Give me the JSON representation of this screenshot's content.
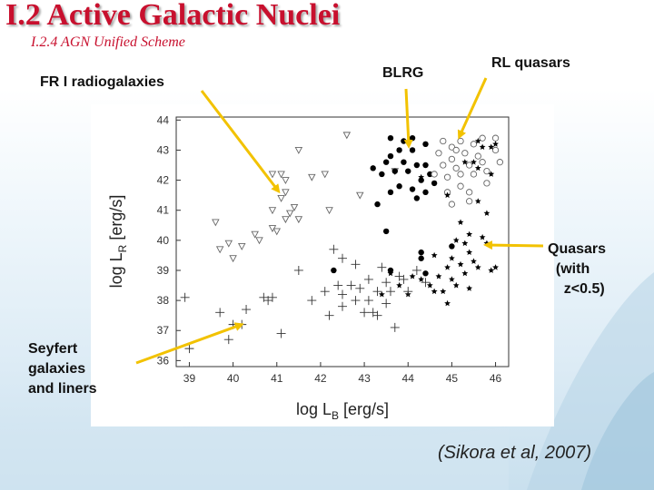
{
  "slide": {
    "title": "I.2 Active Galactic Nuclei",
    "subtitle": "I.2.4 AGN Unified Scheme",
    "citation": "(Sikora et al, 2007)"
  },
  "annotations": {
    "fr1": "FR I radiogalaxies",
    "blrg": "BLRG",
    "rlq": "RL quasars",
    "quasars": "Quasars\n  (with\n    z<0.5)",
    "seyfert": "Seyfert\ngalaxies\nand liners"
  },
  "colors": {
    "title": "#c8102e",
    "arrow": "#f2c200"
  },
  "chart_data": {
    "type": "scatter",
    "xlabel": "log L_B [erg/s]",
    "ylabel": "log L_R [erg/s]",
    "xlim": [
      38.7,
      46.3
    ],
    "ylim": [
      35.8,
      44.1
    ],
    "xticks": [
      39,
      40,
      41,
      42,
      43,
      44,
      45,
      46
    ],
    "yticks": [
      36,
      37,
      38,
      39,
      40,
      41,
      42,
      43,
      44
    ],
    "grid": false,
    "legend": "none",
    "series": [
      {
        "marker": "open-triangle-down",
        "points": [
          [
            39.6,
            40.6
          ],
          [
            39.7,
            39.7
          ],
          [
            39.9,
            39.9
          ],
          [
            40.0,
            39.4
          ],
          [
            40.2,
            39.8
          ],
          [
            40.5,
            40.2
          ],
          [
            40.6,
            40.0
          ],
          [
            40.9,
            40.4
          ],
          [
            41.0,
            40.3
          ],
          [
            41.1,
            41.4
          ],
          [
            41.2,
            40.7
          ],
          [
            41.2,
            41.6
          ],
          [
            41.3,
            40.9
          ],
          [
            41.4,
            41.1
          ],
          [
            41.5,
            40.7
          ],
          [
            41.2,
            42.0
          ],
          [
            41.1,
            42.2
          ],
          [
            40.9,
            42.2
          ],
          [
            40.9,
            41.0
          ],
          [
            41.5,
            43.0
          ],
          [
            41.8,
            42.1
          ],
          [
            42.2,
            41.0
          ],
          [
            42.6,
            43.5
          ],
          [
            42.9,
            41.5
          ],
          [
            43.7,
            42.3
          ],
          [
            42.1,
            42.2
          ]
        ]
      },
      {
        "marker": "filled-circle",
        "points": [
          [
            43.6,
            43.4
          ],
          [
            43.9,
            43.3
          ],
          [
            44.1,
            43.4
          ],
          [
            43.8,
            43.0
          ],
          [
            44.1,
            43.0
          ],
          [
            44.4,
            43.2
          ],
          [
            43.6,
            42.8
          ],
          [
            43.9,
            42.6
          ],
          [
            44.2,
            42.5
          ],
          [
            44.4,
            42.5
          ],
          [
            43.2,
            42.4
          ],
          [
            43.4,
            42.2
          ],
          [
            43.5,
            42.6
          ],
          [
            43.7,
            42.3
          ],
          [
            44.0,
            42.3
          ],
          [
            44.3,
            42.0
          ],
          [
            44.5,
            42.2
          ],
          [
            44.6,
            41.9
          ],
          [
            43.8,
            41.8
          ],
          [
            44.1,
            41.7
          ],
          [
            44.4,
            41.6
          ],
          [
            43.6,
            41.6
          ],
          [
            43.3,
            41.2
          ],
          [
            44.2,
            41.4
          ],
          [
            43.5,
            40.3
          ],
          [
            42.3,
            39.0
          ],
          [
            43.6,
            39.0
          ],
          [
            44.3,
            39.4
          ],
          [
            44.4,
            38.9
          ],
          [
            44.3,
            39.6
          ],
          [
            45.0,
            39.8
          ]
        ]
      },
      {
        "marker": "open-circle",
        "points": [
          [
            44.8,
            43.3
          ],
          [
            45.0,
            43.1
          ],
          [
            45.2,
            43.3
          ],
          [
            45.5,
            43.2
          ],
          [
            45.7,
            43.4
          ],
          [
            46.0,
            43.4
          ],
          [
            46.0,
            43.0
          ],
          [
            44.7,
            42.9
          ],
          [
            45.0,
            42.7
          ],
          [
            45.3,
            42.9
          ],
          [
            45.6,
            42.8
          ],
          [
            44.8,
            42.5
          ],
          [
            45.1,
            42.4
          ],
          [
            45.4,
            42.5
          ],
          [
            45.7,
            42.6
          ],
          [
            44.6,
            42.2
          ],
          [
            44.9,
            42.1
          ],
          [
            45.2,
            42.2
          ],
          [
            45.5,
            42.2
          ],
          [
            45.8,
            42.3
          ],
          [
            46.1,
            42.6
          ],
          [
            45.1,
            43.0
          ],
          [
            44.9,
            41.6
          ],
          [
            45.2,
            41.8
          ],
          [
            45.4,
            41.6
          ],
          [
            45.8,
            41.9
          ],
          [
            45.0,
            41.2
          ],
          [
            45.4,
            41.3
          ]
        ]
      },
      {
        "marker": "filled-star",
        "points": [
          [
            45.6,
            43.3
          ],
          [
            45.9,
            43.1
          ],
          [
            45.7,
            43.1
          ],
          [
            46.0,
            43.2
          ],
          [
            45.3,
            42.6
          ],
          [
            45.6,
            42.4
          ],
          [
            45.9,
            42.2
          ],
          [
            44.3,
            42.1
          ],
          [
            45.5,
            42.6
          ],
          [
            45.6,
            41.3
          ],
          [
            45.8,
            40.9
          ],
          [
            44.9,
            41.5
          ],
          [
            45.2,
            40.6
          ],
          [
            45.4,
            40.2
          ],
          [
            45.7,
            40.1
          ],
          [
            45.8,
            39.9
          ],
          [
            45.1,
            40.0
          ],
          [
            45.3,
            39.9
          ],
          [
            45.0,
            39.4
          ],
          [
            45.2,
            39.2
          ],
          [
            45.4,
            39.6
          ],
          [
            45.5,
            39.3
          ],
          [
            44.9,
            39.1
          ],
          [
            44.7,
            38.8
          ],
          [
            44.5,
            38.5
          ],
          [
            44.8,
            38.3
          ],
          [
            45.1,
            38.5
          ],
          [
            45.3,
            38.9
          ],
          [
            45.4,
            38.4
          ],
          [
            45.0,
            38.7
          ],
          [
            44.3,
            38.7
          ],
          [
            44.0,
            38.2
          ],
          [
            43.8,
            38.5
          ],
          [
            43.4,
            38.2
          ],
          [
            43.6,
            38.9
          ],
          [
            44.1,
            38.8
          ],
          [
            44.6,
            39.5
          ],
          [
            45.6,
            39.1
          ],
          [
            45.9,
            39.0
          ],
          [
            46.0,
            39.1
          ],
          [
            44.9,
            37.9
          ],
          [
            44.6,
            38.3
          ]
        ]
      },
      {
        "marker": "plus",
        "points": [
          [
            38.9,
            38.1
          ],
          [
            39.0,
            36.4
          ],
          [
            39.7,
            37.6
          ],
          [
            39.9,
            36.7
          ],
          [
            40.0,
            37.2
          ],
          [
            40.2,
            37.2
          ],
          [
            40.3,
            37.7
          ],
          [
            40.7,
            38.1
          ],
          [
            40.8,
            38.0
          ],
          [
            40.9,
            38.1
          ],
          [
            41.1,
            36.9
          ],
          [
            41.5,
            39.0
          ],
          [
            41.8,
            38.0
          ],
          [
            42.1,
            38.3
          ],
          [
            42.2,
            37.5
          ],
          [
            42.3,
            39.7
          ],
          [
            42.4,
            38.5
          ],
          [
            42.5,
            39.4
          ],
          [
            42.5,
            37.8
          ],
          [
            42.7,
            38.5
          ],
          [
            42.8,
            38.0
          ],
          [
            42.9,
            38.4
          ],
          [
            43.1,
            38.0
          ],
          [
            43.1,
            38.7
          ],
          [
            43.2,
            37.6
          ],
          [
            43.3,
            37.5
          ],
          [
            43.4,
            39.1
          ],
          [
            43.5,
            38.6
          ],
          [
            43.6,
            38.3
          ],
          [
            43.8,
            38.8
          ],
          [
            43.9,
            38.7
          ],
          [
            44.0,
            38.3
          ],
          [
            44.2,
            39.0
          ],
          [
            44.4,
            38.6
          ],
          [
            43.3,
            38.3
          ],
          [
            43.7,
            37.1
          ],
          [
            43.0,
            37.6
          ],
          [
            42.8,
            39.2
          ],
          [
            43.5,
            37.9
          ],
          [
            42.5,
            38.2
          ]
        ]
      }
    ]
  }
}
